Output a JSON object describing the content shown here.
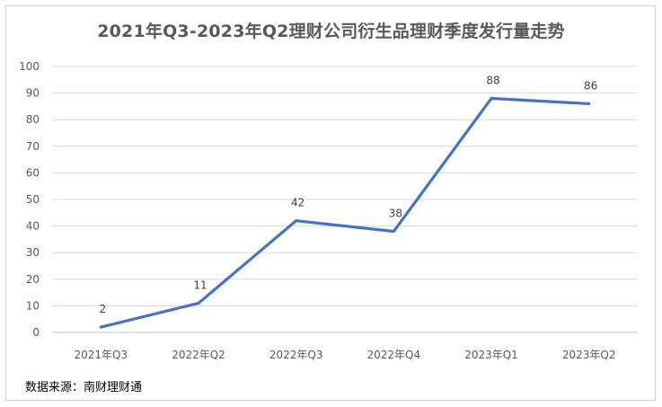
{
  "title": "2021年Q3-2023年Q2理财公司衍生品理财季度发行量走势",
  "source": "数据来源：南财理财通",
  "chart_data": {
    "type": "line",
    "title": "2021年Q3-2023年Q2理财公司衍生品理财季度发行量走势",
    "categories": [
      "2021年Q3",
      "2022年Q2",
      "2022年Q3",
      "2022年Q4",
      "2023年Q1",
      "2023年Q2"
    ],
    "series": [
      {
        "values": [
          2,
          11,
          42,
          38,
          88,
          86
        ],
        "color": "#4472C4"
      }
    ],
    "ylim": [
      0,
      100
    ],
    "yticks": [
      0,
      10,
      20,
      30,
      40,
      50,
      60,
      70,
      80,
      90,
      100
    ],
    "grid": true,
    "data_labels": [
      "2",
      "11",
      "42",
      "38",
      "88",
      "86"
    ]
  }
}
